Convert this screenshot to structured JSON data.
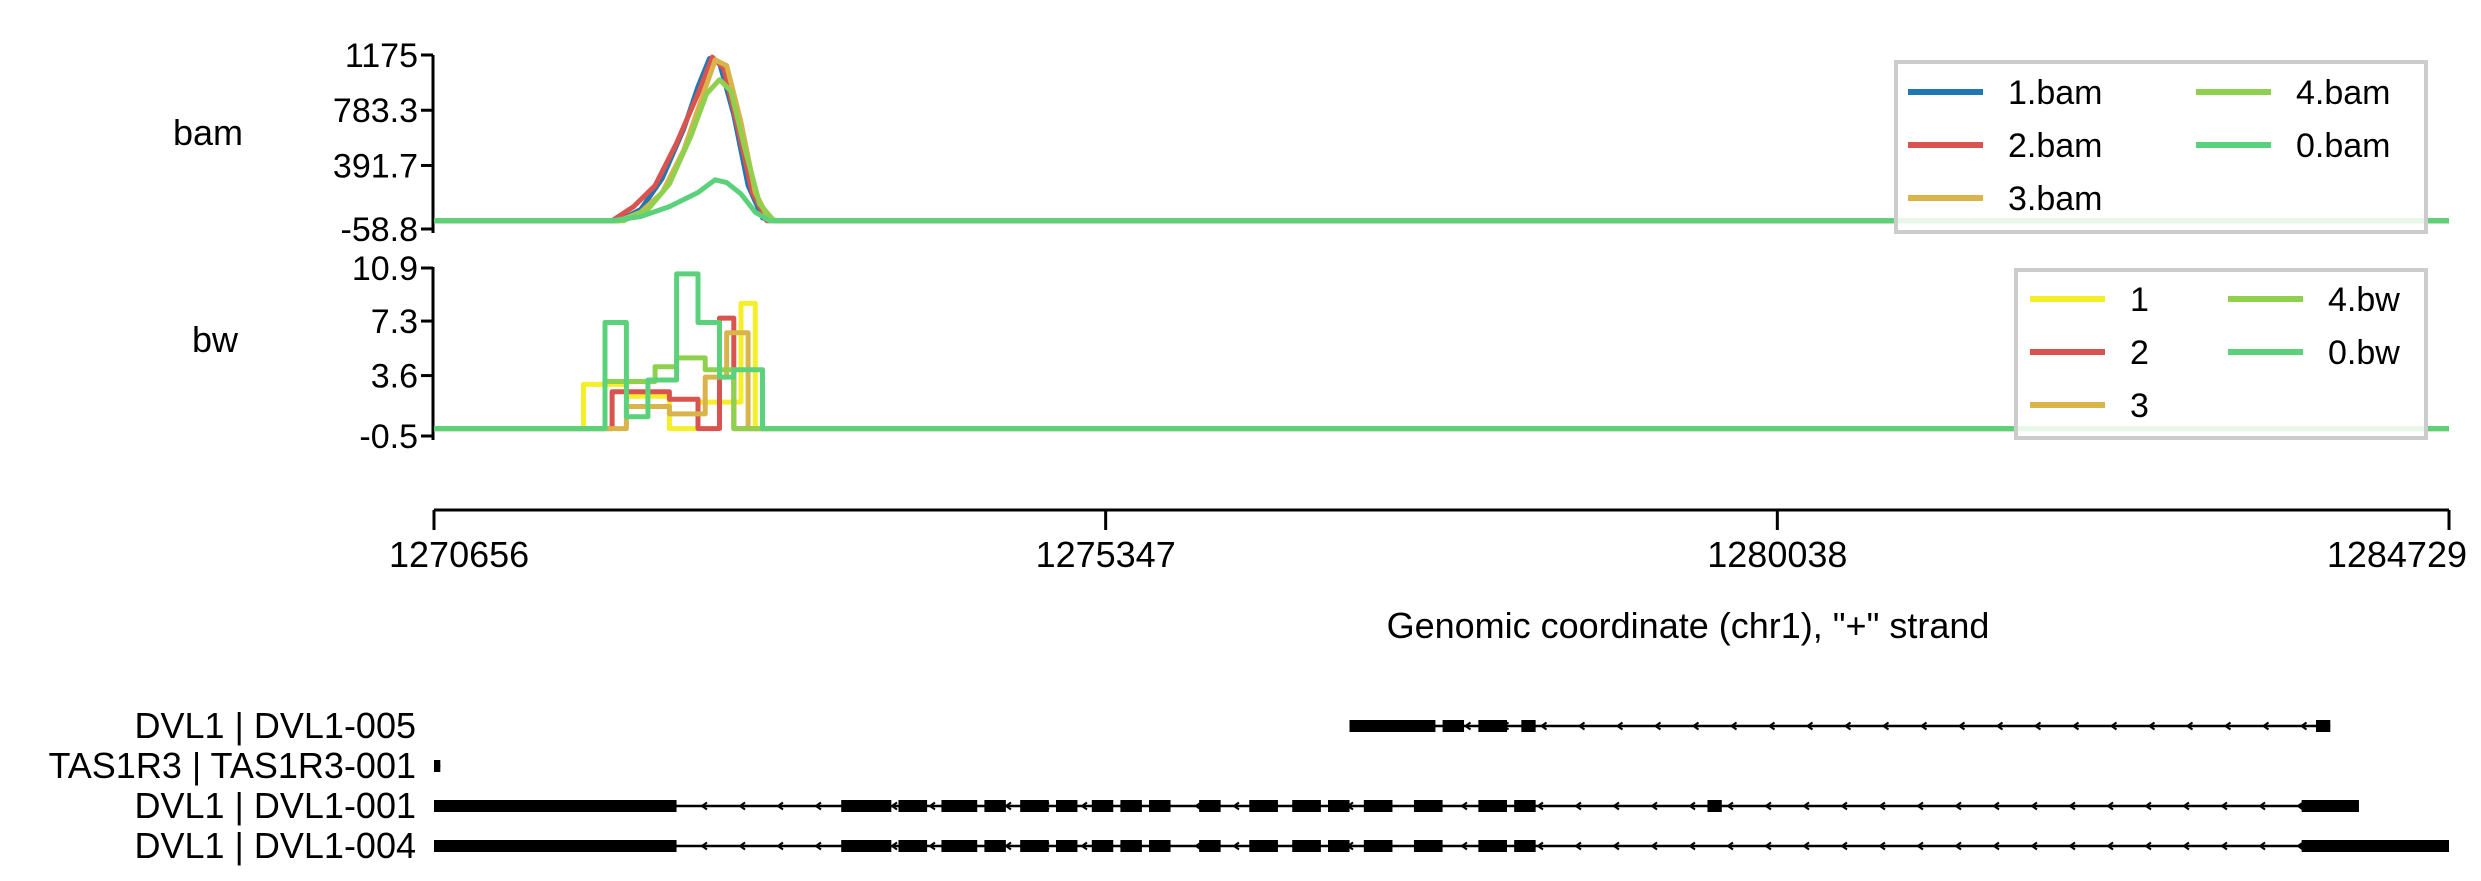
{
  "chart_data": [
    {
      "type": "line",
      "track_label": "bam",
      "y_ticks": [
        "-58.8",
        "391.7",
        "783.3",
        "1175"
      ],
      "ylim": [
        -58.8,
        1175
      ],
      "xlim": [
        1270656,
        1284729
      ],
      "legend_position": "top-right",
      "legend_columns": [
        [
          "1.bam",
          "2.bam",
          "3.bam"
        ],
        [
          "4.bam",
          "0.bam"
        ]
      ],
      "colors": {
        "1.bam": "#1f77b4",
        "2.bam": "#d9534f",
        "3.bam": "#d9b44a",
        "4.bam": "#8fd14f",
        "0.bam": "#5cd17c"
      },
      "series": [
        {
          "name": "1.bam",
          "points": [
            [
              1270656,
              0
            ],
            [
              1271950,
              0
            ],
            [
              1272100,
              80
            ],
            [
              1272250,
              300
            ],
            [
              1272400,
              650
            ],
            [
              1272500,
              950
            ],
            [
              1272580,
              1150
            ],
            [
              1272650,
              1120
            ],
            [
              1272750,
              750
            ],
            [
              1272850,
              250
            ],
            [
              1272950,
              20
            ],
            [
              1273050,
              0
            ],
            [
              1284729,
              0
            ]
          ]
        },
        {
          "name": "2.bam",
          "points": [
            [
              1270656,
              0
            ],
            [
              1271900,
              0
            ],
            [
              1272050,
              100
            ],
            [
              1272200,
              250
            ],
            [
              1272350,
              550
            ],
            [
              1272500,
              900
            ],
            [
              1272600,
              1160
            ],
            [
              1272680,
              1080
            ],
            [
              1272780,
              650
            ],
            [
              1272880,
              200
            ],
            [
              1272980,
              0
            ],
            [
              1284729,
              0
            ]
          ]
        },
        {
          "name": "3.bam",
          "points": [
            [
              1270656,
              0
            ],
            [
              1271950,
              0
            ],
            [
              1272100,
              60
            ],
            [
              1272250,
              200
            ],
            [
              1272400,
              500
            ],
            [
              1272520,
              850
            ],
            [
              1272620,
              1140
            ],
            [
              1272700,
              1100
            ],
            [
              1272800,
              700
            ],
            [
              1272900,
              200
            ],
            [
              1273000,
              0
            ],
            [
              1284729,
              0
            ]
          ]
        },
        {
          "name": "4.bam",
          "points": [
            [
              1270656,
              0
            ],
            [
              1271980,
              0
            ],
            [
              1272150,
              80
            ],
            [
              1272300,
              260
            ],
            [
              1272450,
              600
            ],
            [
              1272560,
              900
            ],
            [
              1272650,
              1000
            ],
            [
              1272730,
              920
            ],
            [
              1272830,
              500
            ],
            [
              1272930,
              120
            ],
            [
              1273030,
              0
            ],
            [
              1284729,
              0
            ]
          ]
        },
        {
          "name": "0.bam",
          "points": [
            [
              1270656,
              0
            ],
            [
              1271900,
              0
            ],
            [
              1272100,
              30
            ],
            [
              1272300,
              100
            ],
            [
              1272500,
              200
            ],
            [
              1272620,
              290
            ],
            [
              1272700,
              270
            ],
            [
              1272800,
              190
            ],
            [
              1272900,
              60
            ],
            [
              1273000,
              0
            ],
            [
              1284729,
              0
            ]
          ]
        }
      ]
    },
    {
      "type": "line",
      "track_label": "bw",
      "y_ticks": [
        "-0.5",
        "3.6",
        "7.3",
        "10.9"
      ],
      "ylim": [
        -0.5,
        10.9
      ],
      "xlim": [
        1270656,
        1284729
      ],
      "legend_position": "top-right",
      "legend_columns": [
        [
          "1",
          "2",
          "3"
        ],
        [
          "4.bw",
          "0.bw"
        ]
      ],
      "colors": {
        "1": "#f5ef2a",
        "2": "#d9534f",
        "3": "#d9b44a",
        "4.bw": "#8fd14f",
        "0.bw": "#5cd17c"
      },
      "series": [
        {
          "name": "1",
          "points": [
            [
              1270656,
              0
            ],
            [
              1271700,
              0
            ],
            [
              1271700,
              3.0
            ],
            [
              1272000,
              3.0
            ],
            [
              1272000,
              2.2
            ],
            [
              1272300,
              2.2
            ],
            [
              1272300,
              0
            ],
            [
              1272500,
              0
            ],
            [
              1272500,
              1.8
            ],
            [
              1272800,
              1.8
            ],
            [
              1272800,
              8.5
            ],
            [
              1272900,
              8.5
            ],
            [
              1272900,
              0
            ],
            [
              1284729,
              0
            ]
          ]
        },
        {
          "name": "2",
          "points": [
            [
              1270656,
              0
            ],
            [
              1271900,
              0
            ],
            [
              1271900,
              2.5
            ],
            [
              1272300,
              2.5
            ],
            [
              1272300,
              2.0
            ],
            [
              1272500,
              2.0
            ],
            [
              1272500,
              0
            ],
            [
              1272650,
              0
            ],
            [
              1272650,
              7.5
            ],
            [
              1272750,
              7.5
            ],
            [
              1272750,
              0
            ],
            [
              1284729,
              0
            ]
          ]
        },
        {
          "name": "3",
          "points": [
            [
              1270656,
              0
            ],
            [
              1272000,
              0
            ],
            [
              1272000,
              1.5
            ],
            [
              1272300,
              1.5
            ],
            [
              1272300,
              1.0
            ],
            [
              1272550,
              1.0
            ],
            [
              1272550,
              3.5
            ],
            [
              1272700,
              3.5
            ],
            [
              1272700,
              6.5
            ],
            [
              1272850,
              6.5
            ],
            [
              1272850,
              0
            ],
            [
              1284729,
              0
            ]
          ]
        },
        {
          "name": "4.bw",
          "points": [
            [
              1270656,
              0
            ],
            [
              1271850,
              0
            ],
            [
              1271850,
              3.2
            ],
            [
              1272200,
              3.2
            ],
            [
              1272200,
              4.2
            ],
            [
              1272350,
              4.2
            ],
            [
              1272350,
              4.8
            ],
            [
              1272550,
              4.8
            ],
            [
              1272550,
              4.0
            ],
            [
              1272750,
              4.0
            ],
            [
              1272750,
              0
            ],
            [
              1284729,
              0
            ]
          ]
        },
        {
          "name": "0.bw",
          "points": [
            [
              1270656,
              0
            ],
            [
              1271850,
              0
            ],
            [
              1271850,
              7.2
            ],
            [
              1272000,
              7.2
            ],
            [
              1272000,
              0.8
            ],
            [
              1272150,
              0.8
            ],
            [
              1272150,
              3.3
            ],
            [
              1272350,
              3.3
            ],
            [
              1272350,
              10.5
            ],
            [
              1272500,
              10.5
            ],
            [
              1272500,
              7.2
            ],
            [
              1272650,
              7.2
            ],
            [
              1272650,
              3.5
            ],
            [
              1272750,
              3.5
            ],
            [
              1272750,
              4.0
            ],
            [
              1272950,
              4.0
            ],
            [
              1272950,
              0
            ],
            [
              1284729,
              0
            ]
          ]
        }
      ]
    }
  ],
  "x_axis": {
    "ticks": [
      "1270656",
      "1275347",
      "1280038",
      "1284729"
    ],
    "label": "Genomic coordinate (chr1), \"+\" strand"
  },
  "transcripts": [
    {
      "label": "DVL1 | DVL1-005",
      "start": 1277050,
      "end": 1283900,
      "exons": [
        [
          1277050,
          1277650
        ],
        [
          1277700,
          1277850
        ],
        [
          1277950,
          1278150
        ],
        [
          1278250,
          1278350
        ],
        [
          1283800,
          1283900
        ]
      ]
    },
    {
      "label": "TAS1R3 | TAS1R3-001",
      "start": 1270656,
      "end": 1270700,
      "exons": [
        [
          1270656,
          1270700
        ]
      ]
    },
    {
      "label": "DVL1 | DVL1-001",
      "start": 1270656,
      "end": 1284100,
      "exons": [
        [
          1270656,
          1272350
        ],
        [
          1273500,
          1273850
        ],
        [
          1273900,
          1274100
        ],
        [
          1274200,
          1274450
        ],
        [
          1274500,
          1274650
        ],
        [
          1274750,
          1274950
        ],
        [
          1275000,
          1275150
        ],
        [
          1275250,
          1275400
        ],
        [
          1275450,
          1275600
        ],
        [
          1275650,
          1275800
        ],
        [
          1276000,
          1276150
        ],
        [
          1276350,
          1276550
        ],
        [
          1276650,
          1276850
        ],
        [
          1276900,
          1277050
        ],
        [
          1277150,
          1277350
        ],
        [
          1277500,
          1277700
        ],
        [
          1277950,
          1278150
        ],
        [
          1278200,
          1278350
        ],
        [
          1279550,
          1279650
        ],
        [
          1283700,
          1284100
        ]
      ]
    },
    {
      "label": "DVL1 | DVL1-004",
      "start": 1270656,
      "end": 1284729,
      "exons": [
        [
          1270656,
          1272350
        ],
        [
          1273500,
          1273850
        ],
        [
          1273900,
          1274100
        ],
        [
          1274200,
          1274450
        ],
        [
          1274500,
          1274650
        ],
        [
          1274750,
          1274950
        ],
        [
          1275000,
          1275150
        ],
        [
          1275250,
          1275400
        ],
        [
          1275450,
          1275600
        ],
        [
          1275650,
          1275800
        ],
        [
          1276000,
          1276150
        ],
        [
          1276350,
          1276550
        ],
        [
          1276650,
          1276850
        ],
        [
          1276900,
          1277050
        ],
        [
          1277150,
          1277350
        ],
        [
          1277500,
          1277700
        ],
        [
          1277950,
          1278150
        ],
        [
          1278200,
          1278350
        ],
        [
          1283700,
          1284729
        ]
      ]
    }
  ]
}
